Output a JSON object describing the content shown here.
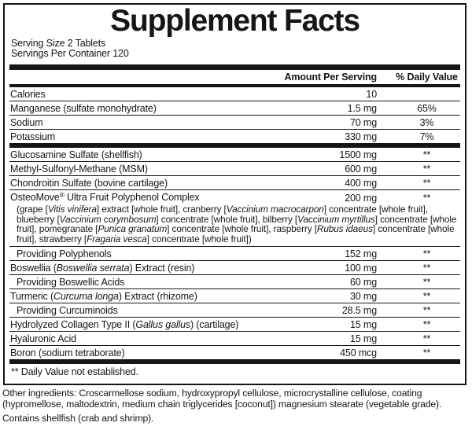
{
  "title": "Supplement Facts",
  "serving": {
    "size": "Serving Size 2 Tablets",
    "per_container": "Servings Per Container 120"
  },
  "columns": {
    "amount": "Amount Per Serving",
    "daily_value": "% Daily Value"
  },
  "colors": {
    "ink": "#161616",
    "paper": "#ffffff"
  },
  "rows": [
    {
      "name": [
        {
          "t": "Calories"
        }
      ],
      "amount": "10",
      "dv": ""
    },
    {
      "name": [
        {
          "t": "Manganese (sulfate monohydrate)"
        }
      ],
      "amount": "1.5 mg",
      "dv": "65%"
    },
    {
      "name": [
        {
          "t": "Sodium"
        }
      ],
      "amount": "70 mg",
      "dv": "3%"
    },
    {
      "name": [
        {
          "t": "Potassium"
        }
      ],
      "amount": "330 mg",
      "dv": "7%"
    },
    {
      "name": [
        {
          "t": "Glucosamine Sulfate (shellfish)"
        }
      ],
      "amount": "1500 mg",
      "dv": "**",
      "divider_before": "thick"
    },
    {
      "name": [
        {
          "t": "Methyl-Sulfonyl-Methane (MSM)"
        }
      ],
      "amount": "600 mg",
      "dv": "**"
    },
    {
      "name": [
        {
          "t": "Chondroitin Sulfate (bovine cartilage)"
        }
      ],
      "amount": "400 mg",
      "dv": "**"
    },
    {
      "name": [
        {
          "t": "OsteoMove"
        },
        {
          "t": "®",
          "sup": true
        },
        {
          "t": " Ultra Fruit Polyphenol Complex"
        }
      ],
      "amount": "200 mg",
      "dv": "**",
      "desc": [
        {
          "t": "(grape ["
        },
        {
          "t": "Vitis vinifera",
          "i": true
        },
        {
          "t": "] extract [whole fruit], cranberry ["
        },
        {
          "t": "Vaccinium macrocarpon",
          "i": true
        },
        {
          "t": "] concentrate [whole fruit], blueberry ["
        },
        {
          "t": "Vaccinium corymbosum",
          "i": true
        },
        {
          "t": "] concentrate [whole fruit], bilberry ["
        },
        {
          "t": "Vaccinium myrtillus",
          "i": true
        },
        {
          "t": "] concentrate [whole fruit], pomegranate ["
        },
        {
          "t": "Punica granatum",
          "i": true
        },
        {
          "t": "] concentrate [whole fruit], raspberry ["
        },
        {
          "t": "Rubus idaeus",
          "i": true
        },
        {
          "t": "] concentrate [whole fruit], strawberry ["
        },
        {
          "t": "Fragaria vesca",
          "i": true
        },
        {
          "t": "] concentrate [whole fruit])"
        }
      ]
    },
    {
      "name": [
        {
          "t": "Providing Polyphenols"
        }
      ],
      "amount": "152 mg",
      "dv": "**",
      "indent": true
    },
    {
      "name": [
        {
          "t": "Boswellia ("
        },
        {
          "t": "Boswellia serrata",
          "i": true
        },
        {
          "t": ") Extract (resin)"
        }
      ],
      "amount": "100 mg",
      "dv": "**"
    },
    {
      "name": [
        {
          "t": "Providing Boswellic Acids"
        }
      ],
      "amount": "60 mg",
      "dv": "**",
      "indent": true
    },
    {
      "name": [
        {
          "t": "Turmeric ("
        },
        {
          "t": "Curcuma longa",
          "i": true
        },
        {
          "t": ") Extract (rhizome)"
        }
      ],
      "amount": "30 mg",
      "dv": "**"
    },
    {
      "name": [
        {
          "t": "Providing Curcuminoids"
        }
      ],
      "amount": "28.5 mg",
      "dv": "**",
      "indent": true
    },
    {
      "name": [
        {
          "t": "Hydrolyzed Collagen Type II ("
        },
        {
          "t": "Gallus gallus",
          "i": true
        },
        {
          "t": ") (cartilage)"
        }
      ],
      "amount": "15 mg",
      "dv": "**"
    },
    {
      "name": [
        {
          "t": "Hyaluronic Acid"
        }
      ],
      "amount": "15 mg",
      "dv": "**"
    },
    {
      "name": [
        {
          "t": "Boron (sodium tetraborate)"
        }
      ],
      "amount": "450 mcg",
      "dv": "**"
    }
  ],
  "footnote": "** Daily Value not established.",
  "other_ingredients": "Other ingredients: Croscarmellose sodium, hydroxypropyl cellulose, microcrystalline cellulose, coating (hypromellose, maltodextrin, medium chain triglycerides [coconut]) magnesium stearate (vegetable grade).",
  "contains": "Contains shellfish (crab and shrimp)."
}
